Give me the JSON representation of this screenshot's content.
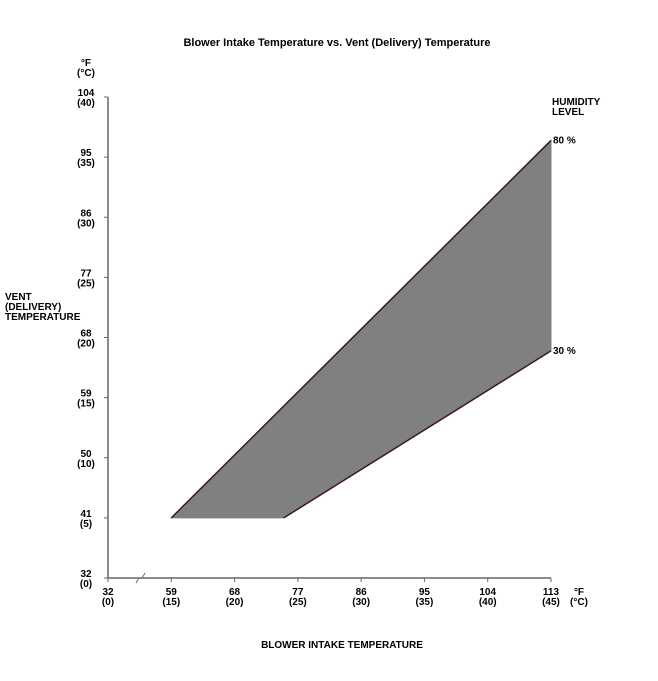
{
  "chart_data": {
    "type": "range-area",
    "title": "Blower Intake Temperature vs. Vent (Delivery) Temperature",
    "x_label": "BLOWER INTAKE TEMPERATURE",
    "y_label": "VENT\n(DELIVERY)\nTEMPERATURE",
    "x_unit": "°F\n(°C)",
    "y_unit": "°F\n(°C)",
    "legend_title": "HUMIDITY\nLEVEL",
    "fill_color": "#808080",
    "line_color": "#3a1a1a",
    "series": [
      {
        "name": "80 %",
        "x": [
          59,
          113
        ],
        "values": [
          41,
          97.5
        ]
      },
      {
        "name": "30 %",
        "x": [
          75,
          113
        ],
        "values": [
          41,
          66
        ]
      }
    ],
    "xlim": [
      32,
      113
    ],
    "x_axis_break": [
      32,
      50
    ],
    "xticks": [
      {
        "value": 32,
        "label": "32\n(0)"
      },
      {
        "value": 59,
        "label": "59\n(15)"
      },
      {
        "value": 68,
        "label": "68\n(20)"
      },
      {
        "value": 77,
        "label": "77\n(25)"
      },
      {
        "value": 86,
        "label": "86\n(30)"
      },
      {
        "value": 95,
        "label": "95\n(35)"
      },
      {
        "value": 104,
        "label": "104\n(40)"
      },
      {
        "value": 113,
        "label": "113\n(45)"
      }
    ],
    "ylim": [
      32,
      104
    ],
    "yticks": [
      {
        "value": 32,
        "label": "32\n(0)"
      },
      {
        "value": 41,
        "label": "41\n(5)"
      },
      {
        "value": 50,
        "label": "50\n(10)"
      },
      {
        "value": 59,
        "label": "59\n(15)"
      },
      {
        "value": 68,
        "label": "68\n(20)"
      },
      {
        "value": 77,
        "label": "77\n(25)"
      },
      {
        "value": 86,
        "label": "86\n(30)"
      },
      {
        "value": 95,
        "label": "95\n(35)"
      },
      {
        "value": 104,
        "label": "104\n(40)"
      }
    ]
  }
}
